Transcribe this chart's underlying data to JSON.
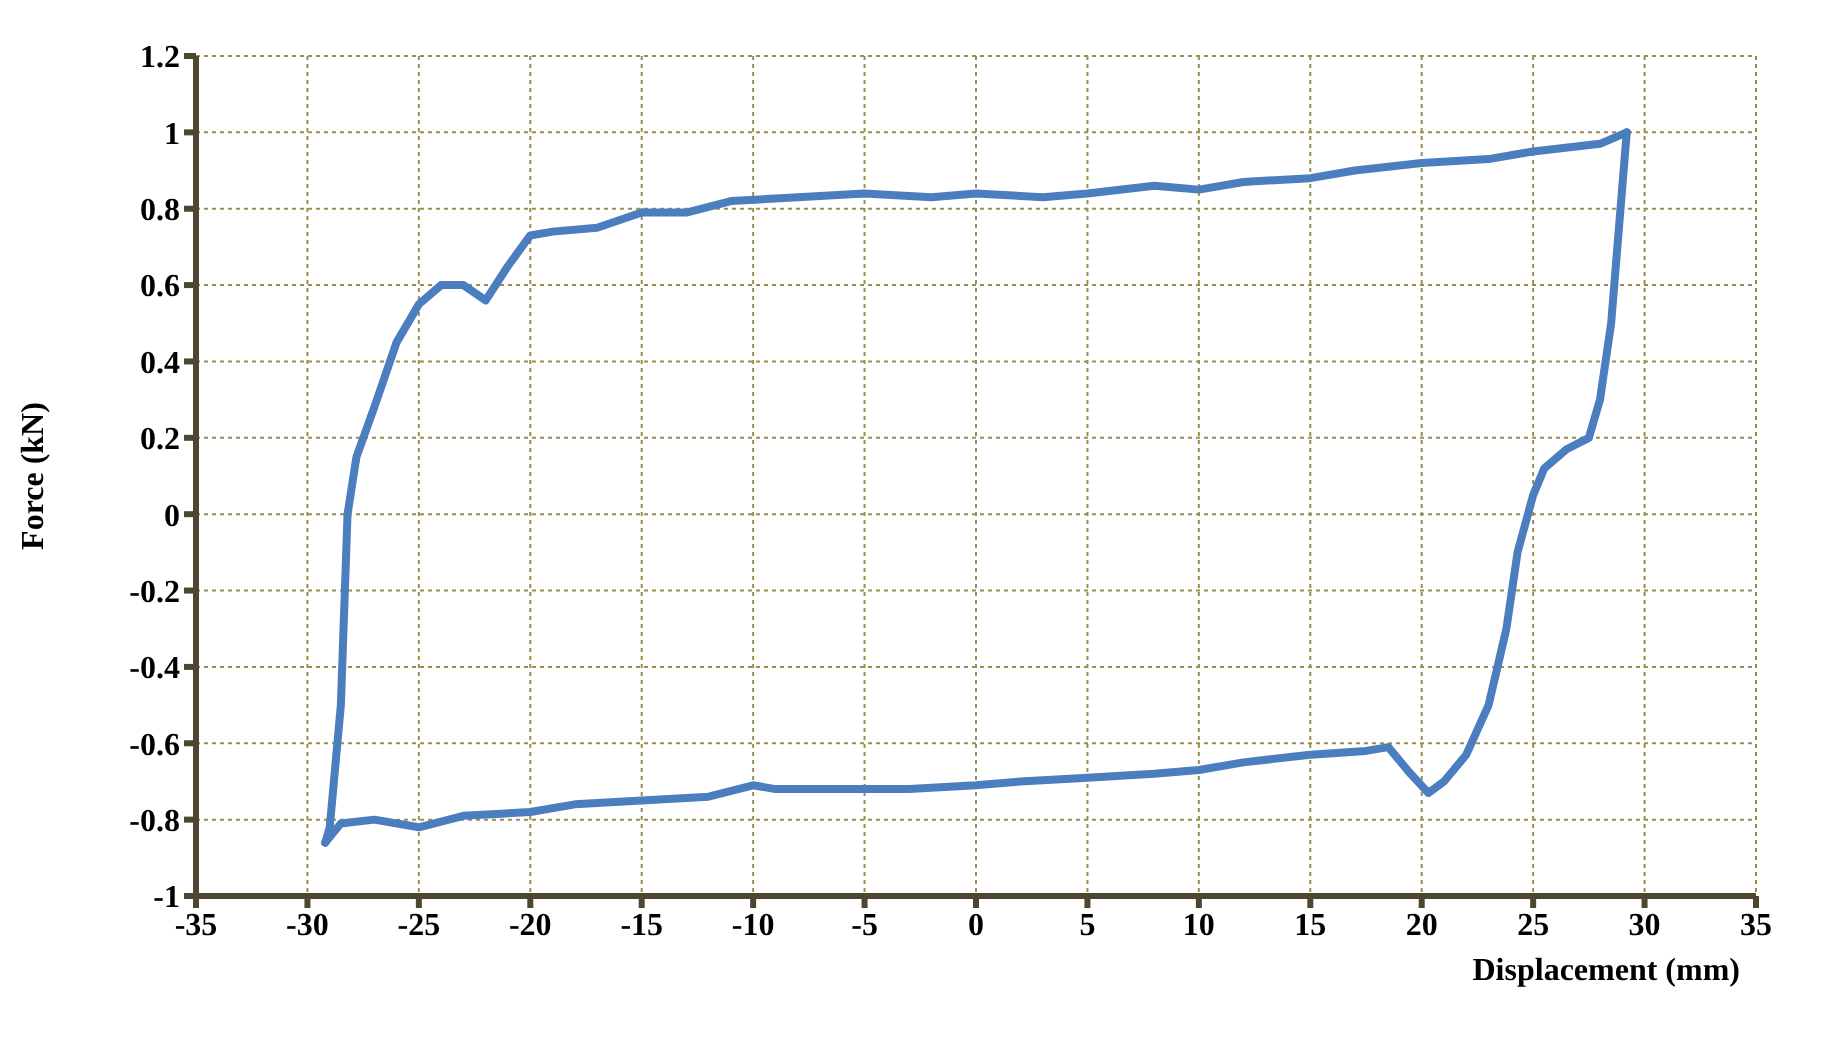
{
  "chart_data": {
    "type": "line",
    "xlabel": "Displacement (mm)",
    "ylabel": "Force (kN)",
    "xlim": [
      -35,
      35
    ],
    "xticks": [
      -35,
      -30,
      -25,
      -20,
      -15,
      -10,
      -5,
      0,
      5,
      10,
      15,
      20,
      25,
      30,
      35
    ],
    "ylim": [
      -1,
      1.2
    ],
    "yticks": [
      -1,
      -0.8,
      -0.6,
      -0.4,
      -0.2,
      0,
      0.2,
      0.4,
      0.6,
      0.8,
      1,
      1.2
    ],
    "grid": true,
    "marker": "none",
    "line_style": "solid",
    "series": [
      {
        "color": "#4a7ebf",
        "x": [
          -29.2,
          -28.5,
          -27,
          -25,
          -23,
          -20,
          -18,
          -15,
          -12,
          -10,
          -9,
          -6,
          -3,
          0,
          2,
          5,
          8,
          10,
          12,
          15,
          17.5,
          18.5,
          19.5,
          20.3,
          21,
          22,
          23,
          23.8,
          24.3,
          25,
          25.5,
          26.5,
          27.5,
          28,
          28.5,
          29.2
        ],
        "values": [
          -0.86,
          -0.81,
          -0.8,
          -0.82,
          -0.79,
          -0.78,
          -0.76,
          -0.75,
          -0.74,
          -0.71,
          -0.72,
          -0.72,
          -0.72,
          -0.71,
          -0.7,
          -0.69,
          -0.68,
          -0.67,
          -0.65,
          -0.63,
          -0.62,
          -0.61,
          -0.68,
          -0.73,
          -0.7,
          -0.63,
          -0.5,
          -0.3,
          -0.1,
          0.05,
          0.12,
          0.17,
          0.2,
          0.3,
          0.5,
          1.0
        ]
      },
      {
        "color": "#4a7ebf",
        "x": [
          -29.2,
          -29,
          -28.5,
          -28.2,
          -27.8,
          -27,
          -26,
          -25,
          -24,
          -23,
          -22,
          -21,
          -20,
          -19,
          -17,
          -15,
          -13,
          -11,
          -8,
          -5,
          -2,
          0,
          3,
          5,
          8,
          10,
          12,
          15,
          17,
          20,
          23,
          25,
          28,
          29.2
        ],
        "values": [
          -0.86,
          -0.82,
          -0.5,
          0,
          0.15,
          0.28,
          0.45,
          0.55,
          0.6,
          0.6,
          0.56,
          0.65,
          0.73,
          0.74,
          0.75,
          0.79,
          0.79,
          0.82,
          0.83,
          0.84,
          0.83,
          0.84,
          0.83,
          0.84,
          0.86,
          0.85,
          0.87,
          0.88,
          0.9,
          0.92,
          0.93,
          0.95,
          0.97,
          1.0
        ]
      }
    ]
  }
}
